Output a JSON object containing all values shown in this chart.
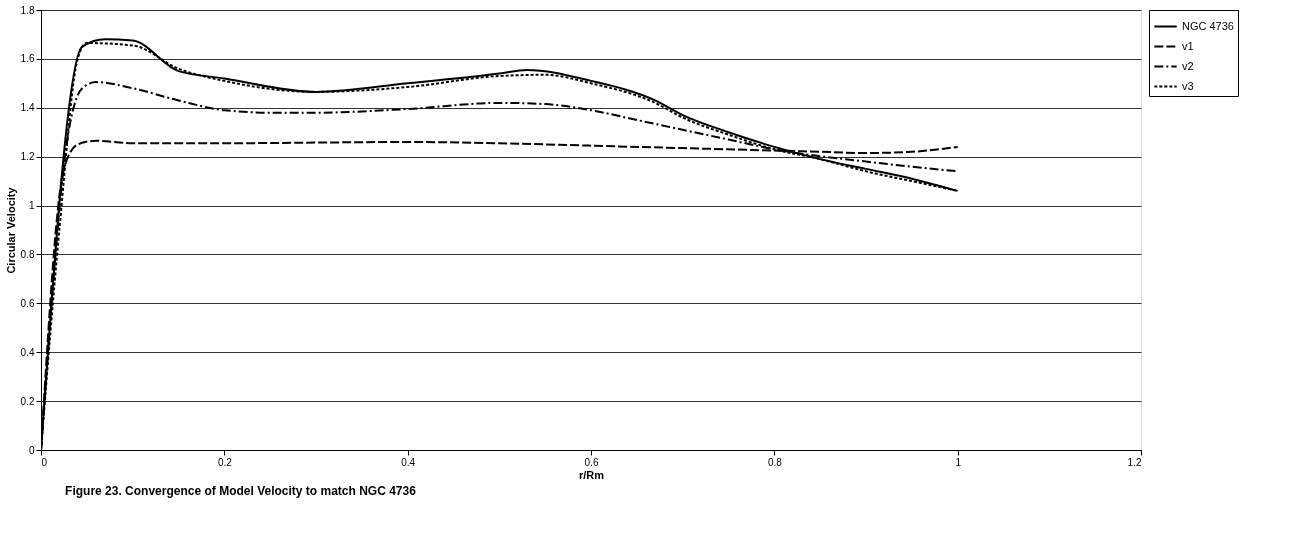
{
  "chart_data": {
    "type": "line",
    "title": "Figure 23. Convergence of Model Velocity to match NGC 4736",
    "xlabel": "r/Rm",
    "ylabel": "Circular Velocity",
    "xlim": [
      0,
      1.2
    ],
    "xticks": [
      {
        "value": 0,
        "label": "0"
      },
      0.2,
      0.4,
      0.6,
      0.8,
      {
        "value": 1,
        "label": "1"
      },
      1.2
    ],
    "ylim": [
      0,
      1.8
    ],
    "yticks": [
      {
        "value": 0,
        "label": "0"
      },
      0.2,
      0.4,
      0.6,
      0.8,
      {
        "value": 1,
        "label": "1"
      },
      1.2,
      1.4,
      1.6,
      1.8
    ],
    "grid": "y",
    "legend": "right",
    "marker": "none",
    "series": [
      {
        "name": "NGC 4736",
        "color": "#000000",
        "line_style": "solid",
        "x": [
          0,
          0.045,
          0.07,
          0.1,
          0.15,
          0.2,
          0.3,
          0.4,
          0.5,
          0.53,
          0.6,
          0.67,
          0.7,
          0.75,
          0.8,
          0.85,
          0.9,
          0.95,
          1.0
        ],
        "values": [
          0,
          1.65,
          1.68,
          1.675,
          1.55,
          1.52,
          1.465,
          1.5,
          1.54,
          1.555,
          1.51,
          1.43,
          1.37,
          1.3,
          1.24,
          1.19,
          1.15,
          1.11,
          1.06
        ]
      },
      {
        "name": "v1",
        "color": "#000000",
        "line_style": "dashed",
        "x": [
          0,
          0.025,
          0.04,
          0.06,
          0.1,
          0.2,
          0.4,
          0.5,
          0.6,
          0.7,
          0.8,
          0.85,
          0.9,
          0.95,
          1.0
        ],
        "values": [
          0,
          1.15,
          1.25,
          1.265,
          1.255,
          1.255,
          1.26,
          1.255,
          1.245,
          1.235,
          1.225,
          1.22,
          1.215,
          1.22,
          1.24
        ]
      },
      {
        "name": "v2",
        "color": "#000000",
        "line_style": "dashdot",
        "x": [
          0,
          0.03,
          0.045,
          0.06,
          0.1,
          0.15,
          0.2,
          0.25,
          0.3,
          0.4,
          0.5,
          0.55,
          0.6,
          0.65,
          0.7,
          0.75,
          0.8,
          0.9,
          1.0
        ],
        "values": [
          0,
          1.3,
          1.48,
          1.505,
          1.48,
          1.43,
          1.39,
          1.38,
          1.38,
          1.395,
          1.42,
          1.415,
          1.39,
          1.35,
          1.31,
          1.27,
          1.23,
          1.18,
          1.14
        ]
      },
      {
        "name": "v3",
        "color": "#000000",
        "line_style": "dotted",
        "x": [
          0,
          0.02,
          0.04,
          0.05,
          0.1,
          0.15,
          0.2,
          0.3,
          0.4,
          0.5,
          0.55,
          0.6,
          0.67,
          0.7,
          0.75,
          0.8,
          0.85,
          0.9,
          0.95,
          1.0
        ],
        "values": [
          0,
          0.9,
          1.6,
          1.665,
          1.655,
          1.56,
          1.51,
          1.465,
          1.485,
          1.53,
          1.535,
          1.5,
          1.42,
          1.36,
          1.29,
          1.23,
          1.19,
          1.14,
          1.1,
          1.06
        ]
      }
    ]
  }
}
